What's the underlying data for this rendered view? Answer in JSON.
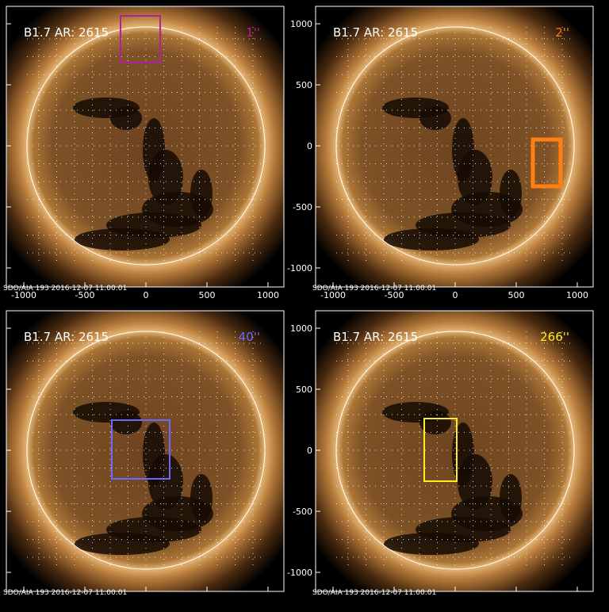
{
  "panels": [
    {
      "label": "B1.7 AR: 2615",
      "tag": "1''",
      "footer": "SDO/AIA 193  2016-12-07 11:00:01",
      "box_color": "#b0209f"
    },
    {
      "label": "B1.7 AR: 2615",
      "tag": "2''",
      "footer": "SDO/AIA 193  2016-12-07 11:00:01",
      "box_color": "#ff7f10"
    },
    {
      "label": "B1.7 AR: 2615",
      "tag": "40''",
      "footer": "SDO/AIA 193  2016-12-07 11:00:01",
      "box_color": "#6a6aff"
    },
    {
      "label": "B1.7 AR: 2615",
      "tag": "266''",
      "footer": "SDO/AIA 193  2016-12-07 11:00:01",
      "box_color": "#ffee20"
    }
  ],
  "xticks": [
    -1000,
    -500,
    0,
    500,
    1000
  ],
  "yticks": [
    1000,
    500,
    0,
    -500,
    -1000
  ]
}
